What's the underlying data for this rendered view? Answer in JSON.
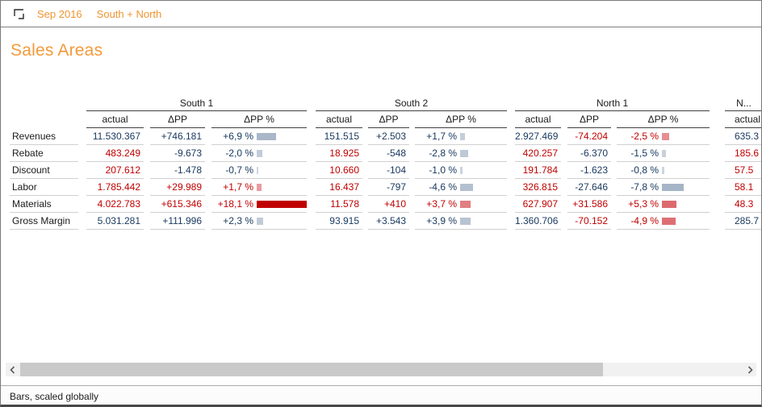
{
  "topbar": {
    "period": "Sep 2016",
    "scope": "South + North"
  },
  "title": "Sales Areas",
  "status": "Bars, scaled globally",
  "colors": {
    "accent_orange": "#f0932f",
    "text_blue": "#17375d",
    "text_red": "#c00000",
    "bar_blue": "#8497b0",
    "bar_blue_light": "#dae0e9",
    "bar_red": "#c00000",
    "bar_red_light": "#f6cdd3"
  },
  "table": {
    "rows": [
      "Revenues",
      "Rebate",
      "Discount",
      "Labor",
      "Materials",
      "Gross Margin"
    ],
    "columns": [
      "actual",
      "ΔPP",
      "ΔPP %"
    ],
    "groups": [
      {
        "name": "South 1",
        "cells": [
          {
            "actual": "11.530.367",
            "actual_color": "blue",
            "delta": "+746.181",
            "delta_color": "blue",
            "pct": "+6,9 %",
            "pct_value": 6.9,
            "pct_color": "blue"
          },
          {
            "actual": "483.249",
            "actual_color": "red",
            "delta": "-9.673",
            "delta_color": "blue",
            "pct": "-2,0 %",
            "pct_value": -2.0,
            "pct_color": "blue"
          },
          {
            "actual": "207.612",
            "actual_color": "red",
            "delta": "-1.478",
            "delta_color": "blue",
            "pct": "-0,7 %",
            "pct_value": -0.7,
            "pct_color": "blue"
          },
          {
            "actual": "1.785.442",
            "actual_color": "red",
            "delta": "+29.989",
            "delta_color": "red",
            "pct": "+1,7 %",
            "pct_value": 1.7,
            "pct_color": "red"
          },
          {
            "actual": "4.022.783",
            "actual_color": "red",
            "delta": "+615.346",
            "delta_color": "red",
            "pct": "+18,1 %",
            "pct_value": 18.1,
            "pct_color": "red"
          },
          {
            "actual": "5.031.281",
            "actual_color": "blue",
            "delta": "+111.996",
            "delta_color": "blue",
            "pct": "+2,3 %",
            "pct_value": 2.3,
            "pct_color": "blue"
          }
        ]
      },
      {
        "name": "South 2",
        "cells": [
          {
            "actual": "151.515",
            "actual_color": "blue",
            "delta": "+2.503",
            "delta_color": "blue",
            "pct": "+1,7 %",
            "pct_value": 1.7,
            "pct_color": "blue"
          },
          {
            "actual": "18.925",
            "actual_color": "red",
            "delta": "-548",
            "delta_color": "blue",
            "pct": "-2,8 %",
            "pct_value": -2.8,
            "pct_color": "blue"
          },
          {
            "actual": "10.660",
            "actual_color": "red",
            "delta": "-104",
            "delta_color": "blue",
            "pct": "-1,0 %",
            "pct_value": -1.0,
            "pct_color": "blue"
          },
          {
            "actual": "16.437",
            "actual_color": "red",
            "delta": "-797",
            "delta_color": "blue",
            "pct": "-4,6 %",
            "pct_value": -4.6,
            "pct_color": "blue"
          },
          {
            "actual": "11.578",
            "actual_color": "red",
            "delta": "+410",
            "delta_color": "red",
            "pct": "+3,7 %",
            "pct_value": 3.7,
            "pct_color": "red"
          },
          {
            "actual": "93.915",
            "actual_color": "blue",
            "delta": "+3.543",
            "delta_color": "blue",
            "pct": "+3,9 %",
            "pct_value": 3.9,
            "pct_color": "blue"
          }
        ]
      },
      {
        "name": "North 1",
        "cells": [
          {
            "actual": "2.927.469",
            "actual_color": "blue",
            "delta": "-74.204",
            "delta_color": "red",
            "pct": "-2,5 %",
            "pct_value": -2.5,
            "pct_color": "red"
          },
          {
            "actual": "420.257",
            "actual_color": "red",
            "delta": "-6.370",
            "delta_color": "blue",
            "pct": "-1,5 %",
            "pct_value": -1.5,
            "pct_color": "blue"
          },
          {
            "actual": "191.784",
            "actual_color": "red",
            "delta": "-1.623",
            "delta_color": "blue",
            "pct": "-0,8 %",
            "pct_value": -0.8,
            "pct_color": "blue"
          },
          {
            "actual": "326.815",
            "actual_color": "red",
            "delta": "-27.646",
            "delta_color": "blue",
            "pct": "-7,8 %",
            "pct_value": -7.8,
            "pct_color": "blue"
          },
          {
            "actual": "627.907",
            "actual_color": "red",
            "delta": "+31.586",
            "delta_color": "red",
            "pct": "+5,3 %",
            "pct_value": 5.3,
            "pct_color": "red"
          },
          {
            "actual": "1.360.706",
            "actual_color": "blue",
            "delta": "-70.152",
            "delta_color": "red",
            "pct": "-4,9 %",
            "pct_value": -4.9,
            "pct_color": "red"
          }
        ]
      }
    ],
    "truncated_group": {
      "name": "N...",
      "column": "actual",
      "visible_values": [
        {
          "text": "635.3",
          "color": "blue"
        },
        {
          "text": "185.6",
          "color": "red"
        },
        {
          "text": "57.5",
          "color": "red"
        },
        {
          "text": "58.1",
          "color": "red"
        },
        {
          "text": "48.3",
          "color": "red"
        },
        {
          "text": "285.7",
          "color": "blue"
        }
      ]
    }
  }
}
